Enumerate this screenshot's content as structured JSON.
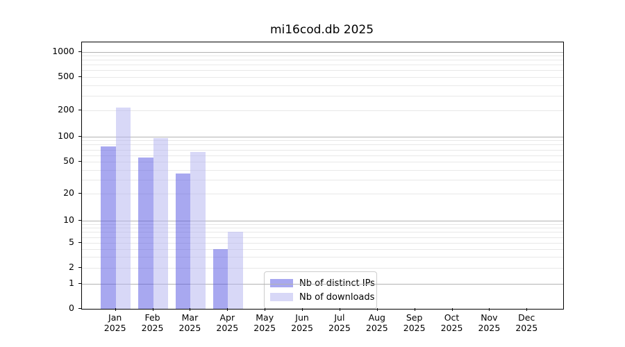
{
  "title": "mi16cod.db 2025",
  "chart_data": {
    "type": "bar",
    "title": "mi16cod.db 2025",
    "x_categories": [
      "Jan",
      "Feb",
      "Mar",
      "Apr",
      "May",
      "Jun",
      "Jul",
      "Aug",
      "Sep",
      "Oct",
      "Nov",
      "Dec"
    ],
    "x_sublabel": "2025",
    "series": [
      {
        "name": "Nb of distinct IPs",
        "fill": "rgba(81,81,225,0.5)",
        "values": [
          76,
          56,
          36,
          4,
          0,
          0,
          0,
          0,
          0,
          0,
          0,
          0
        ]
      },
      {
        "name": "Nb of downloads",
        "fill": "rgba(177,177,239,0.5)",
        "values": [
          215,
          95,
          65,
          7,
          0,
          0,
          0,
          0,
          0,
          0,
          0,
          0
        ]
      }
    ],
    "y_axis": {
      "scale": "symlog",
      "tick_labels": [
        "0",
        "1",
        "2",
        "5",
        "10",
        "20",
        "50",
        "100",
        "200",
        "500",
        "1000"
      ],
      "tick_values": [
        0,
        1,
        2,
        5,
        10,
        20,
        50,
        100,
        200,
        500,
        1000
      ],
      "major_gridlines": [
        1,
        10,
        100,
        1000
      ],
      "minor_gridlines": [
        2,
        3,
        4,
        5,
        6,
        7,
        8,
        9,
        20,
        30,
        40,
        50,
        60,
        70,
        80,
        90,
        200,
        300,
        400,
        500,
        600,
        700,
        800,
        900
      ]
    },
    "legend_position": "lower center",
    "grid": "horizontal only"
  },
  "legend": {
    "items": [
      "Nb of distinct IPs",
      "Nb of downloads"
    ]
  },
  "colors": {
    "bar_distinct_ips": "#a9a9f0",
    "bar_downloads": "#d8d8f7",
    "grid_major": "#b2b2b2",
    "grid_minor": "#e8e8e8",
    "axis": "#000000",
    "legend_border": "#cccccc",
    "background": "#ffffff",
    "text": "#000000"
  }
}
